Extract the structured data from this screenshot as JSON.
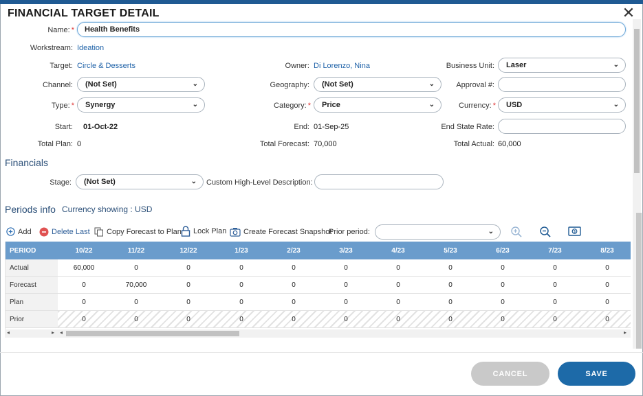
{
  "window": {
    "title": "FINANCIAL TARGET DETAIL"
  },
  "form": {
    "name_label": "Name:",
    "name_value": "Health Benefits",
    "workstream_label": "Workstream:",
    "workstream_value": "Ideation",
    "target_label": "Target:",
    "target_value": "Circle & Desserts",
    "owner_label": "Owner:",
    "owner_value": "Di Lorenzo, Nina",
    "business_unit_label": "Business Unit:",
    "business_unit_value": "Laser",
    "channel_label": "Channel:",
    "channel_value": "(Not Set)",
    "geography_label": "Geography:",
    "geography_value": "(Not Set)",
    "approval_label": "Approval #:",
    "approval_value": "",
    "type_label": "Type:",
    "type_value": "Synergy",
    "category_label": "Category:",
    "category_value": "Price",
    "currency_label": "Currency:",
    "currency_value": "USD",
    "start_label": "Start:",
    "start_value": "01-Oct-22",
    "end_label": "End:",
    "end_value": "01-Sep-25",
    "end_state_rate_label": "End State Rate:",
    "end_state_rate_value": "",
    "total_plan_label": "Total Plan:",
    "total_plan_value": "0",
    "total_forecast_label": "Total Forecast:",
    "total_forecast_value": "70,000",
    "total_actual_label": "Total Actual:",
    "total_actual_value": "60,000",
    "required_mark": "*"
  },
  "financials": {
    "heading": "Financials",
    "stage_label": "Stage:",
    "stage_value": "(Not Set)",
    "desc_label": "Custom High-Level Description:",
    "desc_value": ""
  },
  "periods": {
    "heading": "Periods info",
    "currency_showing": "Currency showing : USD",
    "toolbar": {
      "add": "Add",
      "delete_last": "Delete Last",
      "copy_forecast": "Copy Forecast to Plan",
      "lock_plan": "Lock Plan",
      "snapshot": "Create Forecast Snapshot",
      "prior_period_label": "Prior period:",
      "prior_period_value": ""
    },
    "columns": [
      "PERIOD",
      "10/22",
      "11/22",
      "12/22",
      "1/23",
      "2/23",
      "3/23",
      "4/23",
      "5/23",
      "6/23",
      "7/23",
      "8/23"
    ],
    "rows": [
      {
        "label": "Actual",
        "values": [
          "60,000",
          "0",
          "0",
          "0",
          "0",
          "0",
          "0",
          "0",
          "0",
          "0",
          "0"
        ]
      },
      {
        "label": "Forecast",
        "values": [
          "0",
          "70,000",
          "0",
          "0",
          "0",
          "0",
          "0",
          "0",
          "0",
          "0",
          "0"
        ]
      },
      {
        "label": "Plan",
        "values": [
          "0",
          "0",
          "0",
          "0",
          "0",
          "0",
          "0",
          "0",
          "0",
          "0",
          "0"
        ]
      },
      {
        "label": "Prior",
        "values": [
          "0",
          "0",
          "0",
          "0",
          "0",
          "0",
          "0",
          "0",
          "0",
          "0",
          "0"
        ]
      }
    ]
  },
  "footer": {
    "cancel": "CANCEL",
    "save": "SAVE"
  },
  "colors": {
    "accent": "#1d6aa8",
    "header": "#6a9ccc",
    "link": "#1f62a8",
    "delete": "#e05252"
  }
}
